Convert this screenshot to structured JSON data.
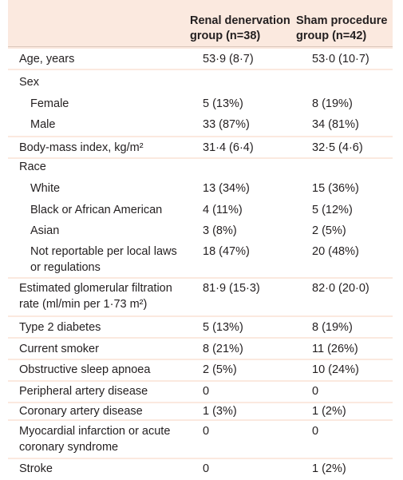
{
  "header": {
    "col1": [
      "Renal denervation",
      "group (n=38)"
    ],
    "col2": [
      "Sham procedure",
      "group (n=42)"
    ]
  },
  "rows": [
    {
      "label": "Age, years",
      "v1": "53·9 (8·7)",
      "v2": "53·0 (10·7)"
    },
    {
      "label": "Sex",
      "v1": "",
      "v2": ""
    },
    {
      "label": "Female",
      "v1": "5 (13%)",
      "v2": "8 (19%)"
    },
    {
      "label": "Male",
      "v1": "33 (87%)",
      "v2": "34 (81%)"
    },
    {
      "label": "Body-mass index, kg/m²",
      "v1": "31·4 (6·4)",
      "v2": "32·5 (4·6)"
    },
    {
      "label": "Race",
      "v1": "",
      "v2": ""
    },
    {
      "label": "White",
      "v1": "13 (34%)",
      "v2": "15 (36%)"
    },
    {
      "label": "Black or African American",
      "v1": "4 (11%)",
      "v2": "5 (12%)"
    },
    {
      "label": "Asian",
      "v1": "3 (8%)",
      "v2": "2 (5%)"
    },
    {
      "label": "Not reportable per local laws",
      "label2": "or regulations",
      "v1": "18 (47%)",
      "v2": "20 (48%)"
    },
    {
      "label": "Estimated glomerular filtration",
      "label2": "rate (ml/min per 1·73 m²)",
      "v1": "81·9 (15·3)",
      "v2": "82·0 (20·0)"
    },
    {
      "label": "Type 2 diabetes",
      "v1": "5 (13%)",
      "v2": "8 (19%)"
    },
    {
      "label": "Current smoker",
      "v1": "8 (21%)",
      "v2": "11 (26%)"
    },
    {
      "label": "Obstructive sleep apnoea",
      "v1": "2 (5%)",
      "v2": "10 (24%)"
    },
    {
      "label": "Peripheral artery disease",
      "v1": "0",
      "v2": "0"
    },
    {
      "label": "Coronary artery disease",
      "v1": "1 (3%)",
      "v2": "1 (2%)"
    },
    {
      "label": "Myocardial infarction or acute",
      "label2": "coronary syndrome",
      "v1": "0",
      "v2": "0"
    },
    {
      "label": "Stroke",
      "v1": "0",
      "v2": "1 (2%)"
    }
  ]
}
